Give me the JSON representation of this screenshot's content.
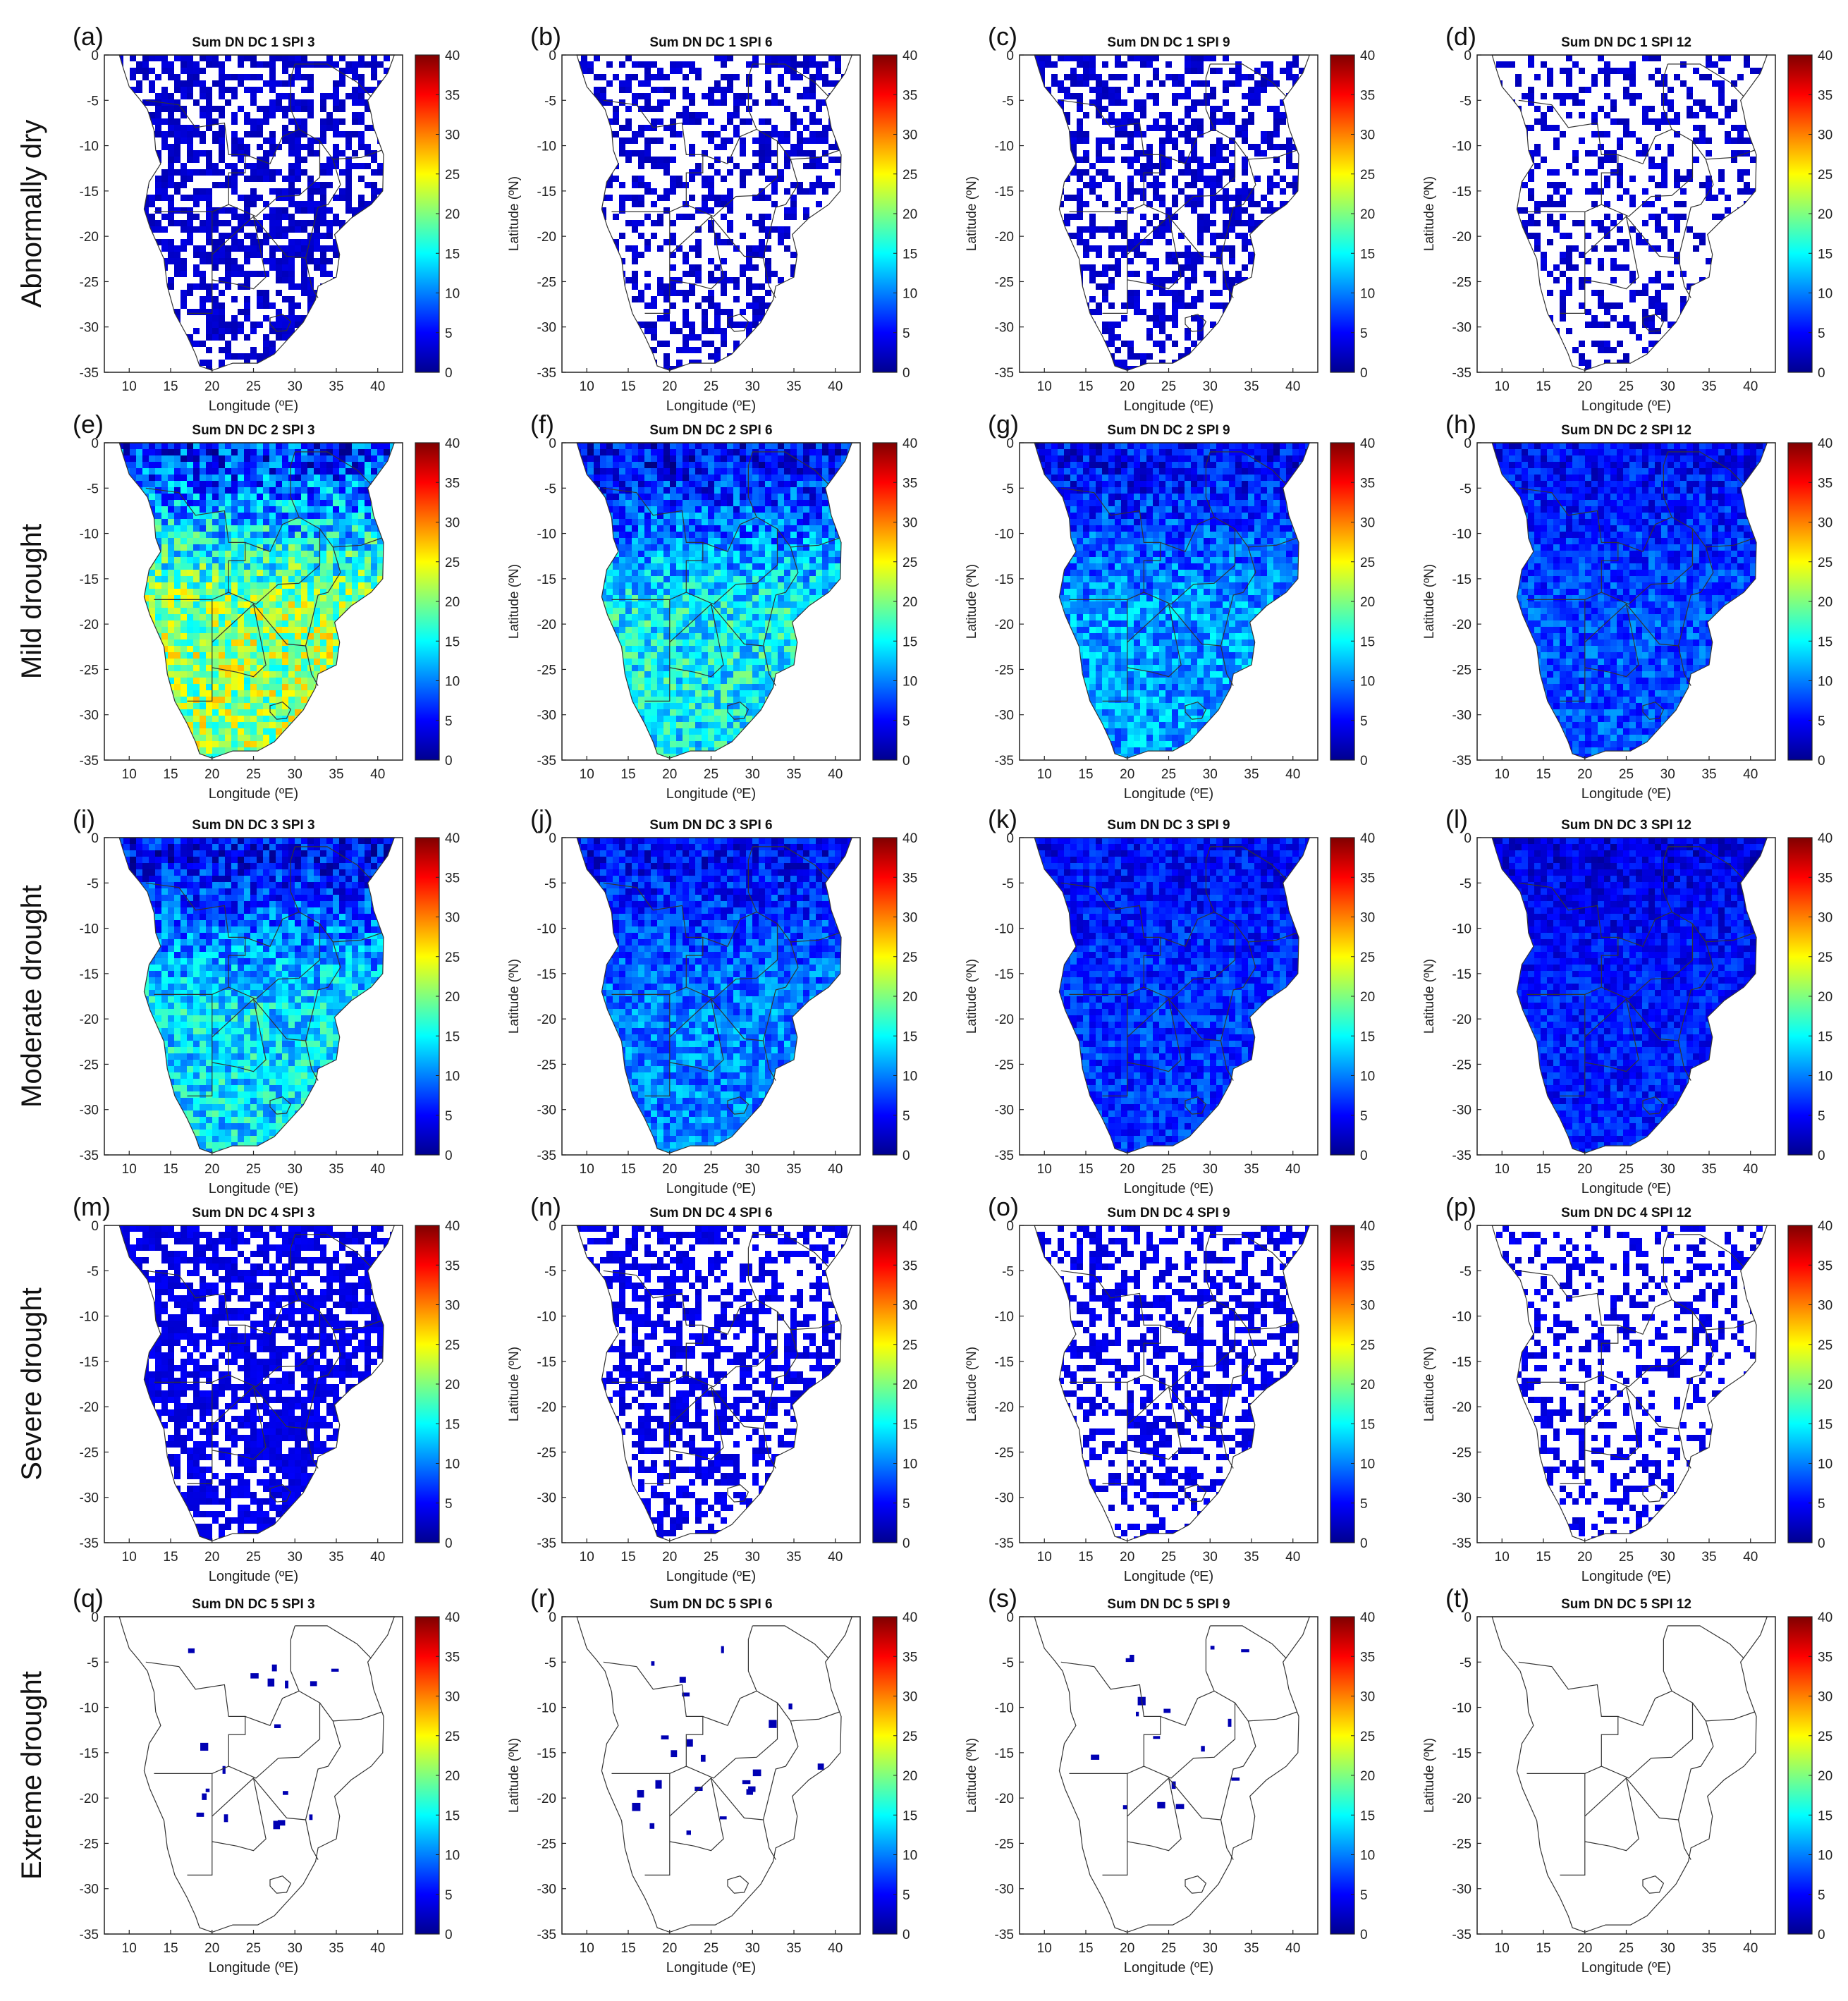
{
  "figure": {
    "row_labels": [
      "Abnormally dry",
      "Mild drought",
      "Moderate drought",
      "Severe  drought",
      "Extreme drought"
    ],
    "x_label": "Longitude (ºE)",
    "y_label": "Latitude (ºN)",
    "x_ticks": [
      "10",
      "15",
      "20",
      "25",
      "30",
      "35",
      "40"
    ],
    "y_ticks": [
      "0",
      "-5",
      "-10",
      "-15",
      "-20",
      "-25",
      "-30",
      "-35"
    ],
    "colorbar_ticks": [
      "40",
      "35",
      "30",
      "25",
      "20",
      "15",
      "10",
      "5",
      "0"
    ],
    "colormap": "jet",
    "colorbar_range": [
      0,
      40
    ],
    "panels": [
      {
        "letter": "(a)",
        "title": "Sum DN DC 1 SPI 3",
        "style": "speckle",
        "density": 0.55,
        "level": 2,
        "show_ylabel": false
      },
      {
        "letter": "(b)",
        "title": "Sum DN DC 1 SPI 6",
        "style": "speckle",
        "density": 0.42,
        "level": 2,
        "show_ylabel": true
      },
      {
        "letter": "(c)",
        "title": "Sum DN DC 1 SPI 9",
        "style": "speckle",
        "density": 0.5,
        "level": 2,
        "show_ylabel": true
      },
      {
        "letter": "(d)",
        "title": "Sum DN DC 1 SPI 12",
        "style": "speckle",
        "density": 0.3,
        "level": 2,
        "show_ylabel": true
      },
      {
        "letter": "(e)",
        "title": "Sum DN DC 2 SPI 3",
        "style": "field",
        "level": 21,
        "north_level": 7,
        "show_ylabel": false
      },
      {
        "letter": "(f)",
        "title": "Sum DN DC 2 SPI 6",
        "style": "field",
        "level": 15,
        "north_level": 5,
        "show_ylabel": true
      },
      {
        "letter": "(g)",
        "title": "Sum DN DC 2 SPI 9",
        "style": "field",
        "level": 11,
        "north_level": 5,
        "show_ylabel": true
      },
      {
        "letter": "(h)",
        "title": "Sum DN DC 2 SPI 12",
        "style": "field",
        "level": 8,
        "north_level": 5,
        "show_ylabel": true
      },
      {
        "letter": "(i)",
        "title": "Sum DN DC 3 SPI 3",
        "style": "field",
        "level": 14,
        "north_level": 5,
        "show_ylabel": false
      },
      {
        "letter": "(j)",
        "title": "Sum DN DC 3 SPI 6",
        "style": "field",
        "level": 10,
        "north_level": 5,
        "show_ylabel": true
      },
      {
        "letter": "(k)",
        "title": "Sum DN DC 3 SPI 9",
        "style": "field",
        "level": 7,
        "north_level": 5,
        "show_ylabel": true
      },
      {
        "letter": "(l)",
        "title": "Sum DN DC 3 SPI 12",
        "style": "field",
        "level": 6,
        "north_level": 4,
        "show_ylabel": true
      },
      {
        "letter": "(m)",
        "title": "Sum DN DC 4 SPI 3",
        "style": "speckle",
        "density": 0.7,
        "level": 3,
        "show_ylabel": false
      },
      {
        "letter": "(n)",
        "title": "Sum DN DC 4 SPI 6",
        "style": "speckle",
        "density": 0.5,
        "level": 3,
        "show_ylabel": true
      },
      {
        "letter": "(o)",
        "title": "Sum DN DC 4 SPI 9",
        "style": "speckle",
        "density": 0.45,
        "level": 3,
        "show_ylabel": true
      },
      {
        "letter": "(p)",
        "title": "Sum DN DC 4 SPI 12",
        "style": "speckle",
        "density": 0.3,
        "level": 3,
        "show_ylabel": true
      },
      {
        "letter": "(q)",
        "title": "Sum DN DC 5 SPI 3",
        "style": "sparse",
        "density": 0.02,
        "level": 2,
        "show_ylabel": false
      },
      {
        "letter": "(r)",
        "title": "Sum DN DC 5 SPI 6",
        "style": "sparse",
        "density": 0.025,
        "level": 2,
        "show_ylabel": true
      },
      {
        "letter": "(s)",
        "title": "Sum DN DC 5 SPI 9",
        "style": "sparse",
        "density": 0.018,
        "level": 2,
        "show_ylabel": true
      },
      {
        "letter": "(t)",
        "title": "Sum DN DC 5 SPI 12",
        "style": "sparse",
        "density": 0.0,
        "level": 2,
        "show_ylabel": true
      }
    ]
  }
}
